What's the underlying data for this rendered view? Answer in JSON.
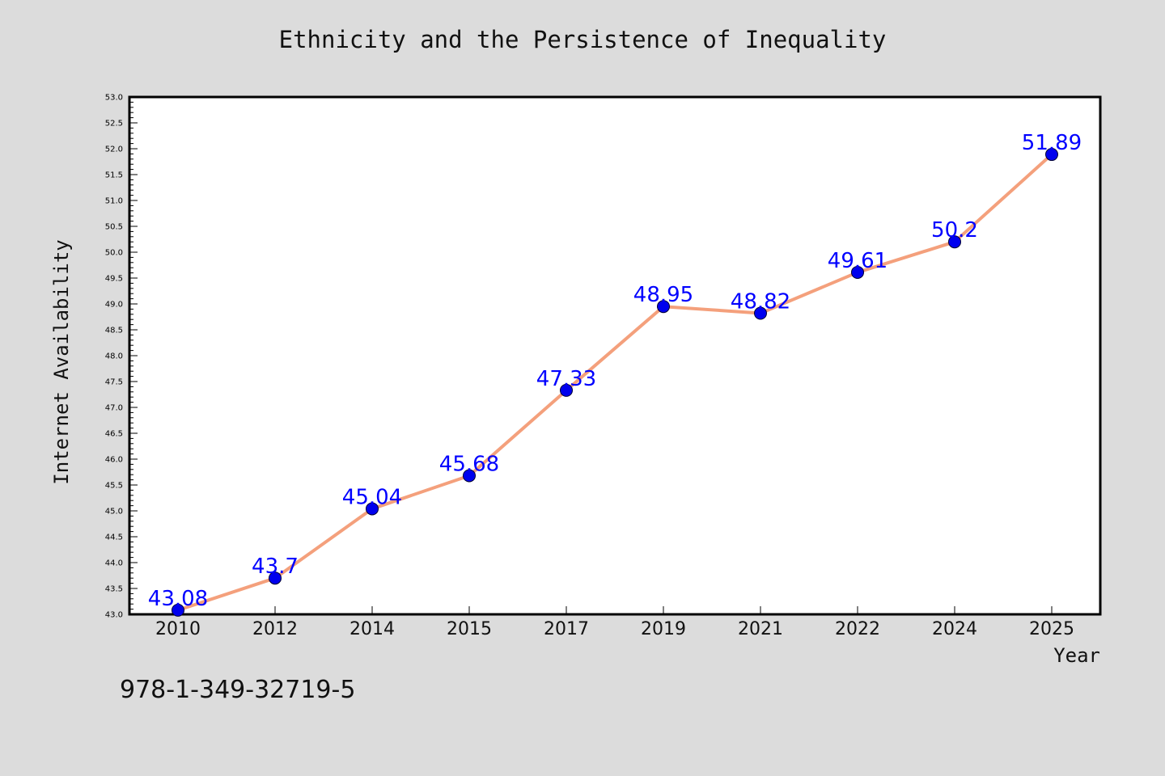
{
  "chart_data": {
    "type": "line",
    "title": "Ethnicity and the Persistence of Inequality",
    "xlabel": "Year",
    "ylabel": "Internet Availability",
    "categories": [
      "2010",
      "2012",
      "2014",
      "2015",
      "2017",
      "2019",
      "2021",
      "2022",
      "2024",
      "2025"
    ],
    "series": [
      {
        "values": [
          43.08,
          43.7,
          45.04,
          45.68,
          47.33,
          48.95,
          48.82,
          49.61,
          50.2,
          51.89
        ],
        "data_labels": [
          "43.08",
          "43.7",
          "45.04",
          "45.68",
          "47.33",
          "48.95",
          "48.82",
          "49.61",
          "50.2",
          "51.89"
        ]
      }
    ],
    "ylim": [
      43.0,
      53.0
    ],
    "y_ticks": [
      "43.0",
      "43.5",
      "44.0",
      "44.5",
      "45.0",
      "45.5",
      "46.0",
      "46.5",
      "47.0",
      "47.5",
      "48.0",
      "48.5",
      "49.0",
      "49.5",
      "50.0",
      "50.5",
      "51.0",
      "51.5",
      "52.0",
      "52.5",
      "53.0"
    ],
    "grid": false,
    "line_color": "#f4a07c",
    "marker_color": "#0000ee",
    "label_color": "#0000ff",
    "background_color": "#dcdcdc",
    "plot_background_color": "#ffffff"
  },
  "note": "978-1-349-32719-5"
}
